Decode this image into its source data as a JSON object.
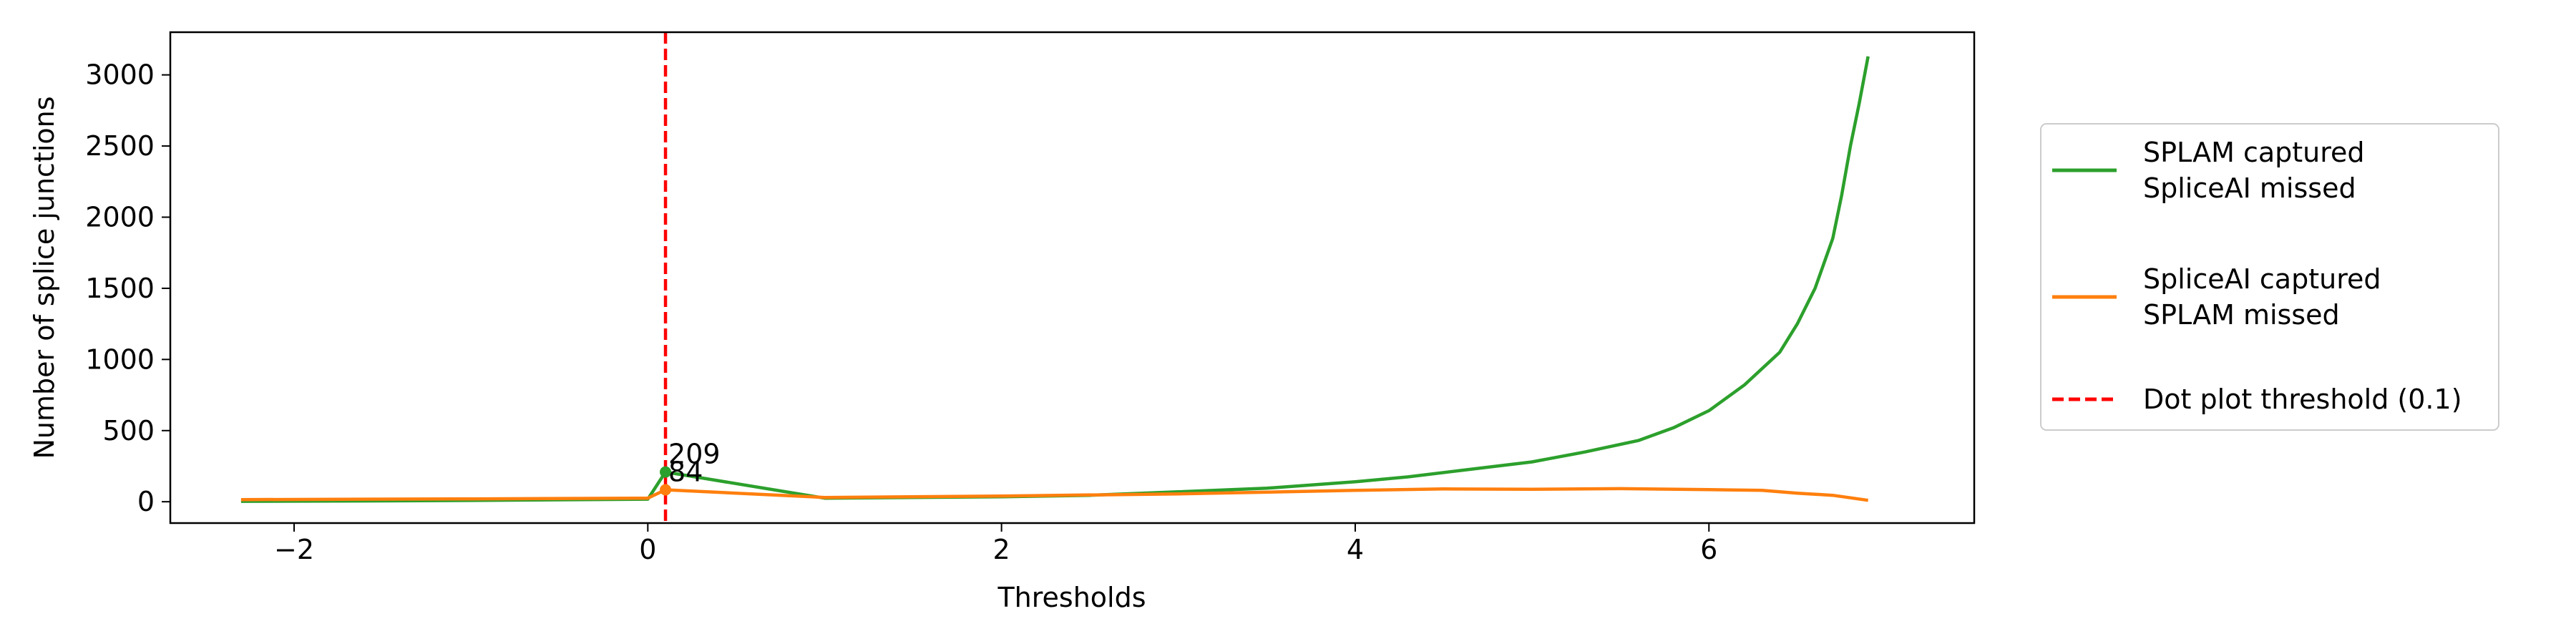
{
  "chart_data": {
    "type": "line",
    "xlabel": "Thresholds",
    "ylabel": "Number of splice junctions",
    "xlim": [
      -2.7,
      7.5
    ],
    "ylim": [
      -150,
      3300
    ],
    "xticks": [
      -2,
      0,
      2,
      4,
      6
    ],
    "xtick_labels": [
      "−2",
      "0",
      "2",
      "4",
      "6"
    ],
    "yticks": [
      0,
      500,
      1000,
      1500,
      2000,
      2500,
      3000
    ],
    "ytick_labels": [
      "0",
      "500",
      "1000",
      "1500",
      "2000",
      "2500",
      "3000"
    ],
    "grid": false,
    "legend_position": "right-outside",
    "series": [
      {
        "name": "SPLAM captured\nSpliceAI missed",
        "color": "#2ca02c",
        "x": [
          -2.3,
          -1.5,
          -1.0,
          0.0,
          0.1,
          1.0,
          2.0,
          2.5,
          3.0,
          3.5,
          4.0,
          4.3,
          4.6,
          5.0,
          5.3,
          5.6,
          5.8,
          6.0,
          6.2,
          6.4,
          6.5,
          6.6,
          6.7,
          6.75,
          6.8,
          6.85,
          6.9
        ],
        "y": [
          3,
          6,
          9,
          18,
          209,
          25,
          35,
          45,
          70,
          95,
          140,
          175,
          220,
          280,
          350,
          430,
          520,
          640,
          820,
          1050,
          1250,
          1500,
          1850,
          2150,
          2500,
          2800,
          3130
        ]
      },
      {
        "name": "SpliceAI captured\nSPLAM missed",
        "color": "#ff7f0e",
        "x": [
          -2.3,
          -1.0,
          0.0,
          0.1,
          1.0,
          2.0,
          3.0,
          4.0,
          4.5,
          5.0,
          5.5,
          6.0,
          6.3,
          6.5,
          6.7,
          6.9
        ],
        "y": [
          15,
          20,
          25,
          84,
          30,
          40,
          55,
          80,
          90,
          88,
          92,
          85,
          80,
          60,
          45,
          10
        ]
      }
    ],
    "threshold_line": {
      "label": "Dot plot threshold (0.1)",
      "x": 0.1,
      "color": "#ff0000"
    },
    "markers": [
      {
        "x": 0.1,
        "y": 209,
        "color": "#2ca02c",
        "label": "209"
      },
      {
        "x": 0.1,
        "y": 84,
        "color": "#ff7f0e",
        "label": "84"
      }
    ]
  }
}
